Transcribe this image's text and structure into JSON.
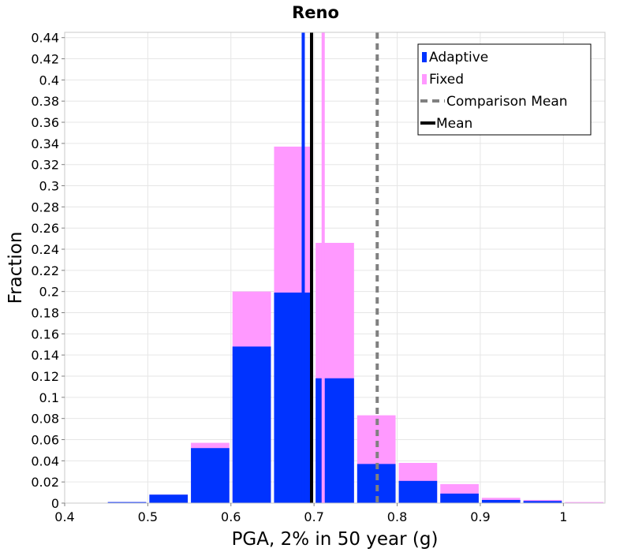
{
  "chart_data": {
    "type": "bar",
    "title": "Reno",
    "xlabel": "PGA, 2% in 50 year (g)",
    "ylabel": "Fraction",
    "xlim": [
      0.4,
      1.05
    ],
    "ylim": [
      0,
      0.445
    ],
    "xticks": [
      "0.4",
      "0.5",
      "0.6",
      "0.7",
      "0.8",
      "0.9",
      "1"
    ],
    "yticks": [
      "0",
      "0.02",
      "0.04",
      "0.06",
      "0.08",
      "0.1",
      "0.12",
      "0.14",
      "0.16",
      "0.18",
      "0.2",
      "0.22",
      "0.24",
      "0.26",
      "0.28",
      "0.3",
      "0.32",
      "0.34",
      "0.36",
      "0.38",
      "0.4",
      "0.42",
      "0.44"
    ],
    "bin_width": 0.05,
    "bin_centers": [
      0.425,
      0.475,
      0.525,
      0.575,
      0.625,
      0.675,
      0.725,
      0.775,
      0.825,
      0.875,
      0.925,
      0.975,
      1.025
    ],
    "series": [
      {
        "name": "Adaptive",
        "color": "#0033ff",
        "values": [
          0.0,
          0.001,
          0.008,
          0.052,
          0.148,
          0.199,
          0.118,
          0.037,
          0.021,
          0.009,
          0.003,
          0.002,
          0.0
        ]
      },
      {
        "name": "Fixed",
        "color": "#ff99ff",
        "values": [
          0.0,
          0.001,
          0.008,
          0.057,
          0.2,
          0.337,
          0.246,
          0.083,
          0.038,
          0.018,
          0.005,
          0.003,
          0.001
        ]
      }
    ],
    "lines": [
      {
        "name": "Comparison Mean",
        "x": 0.776,
        "color": "#808080",
        "style": "dashed"
      },
      {
        "name": "Mean",
        "x": 0.697,
        "color": "#000000",
        "style": "solid"
      }
    ],
    "unlabeled_lines": [
      {
        "x": 0.687,
        "color": "#0033ff"
      },
      {
        "x": 0.711,
        "color": "#ff99ff"
      }
    ],
    "grid": true,
    "legend_position": "top-right"
  }
}
